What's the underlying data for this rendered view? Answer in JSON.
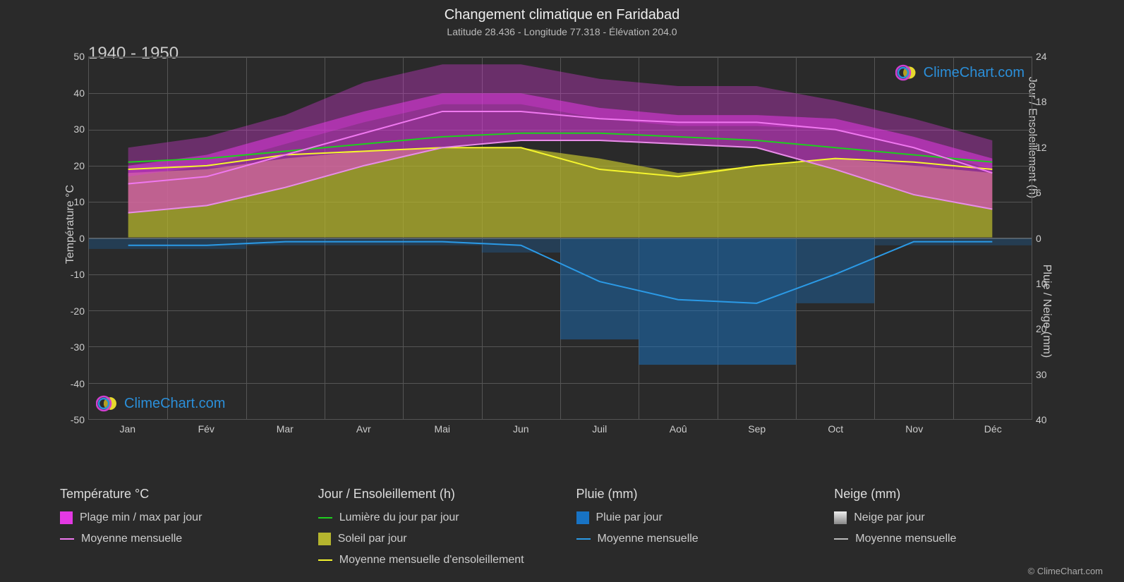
{
  "title": "Changement climatique en Faridabad",
  "subtitle": "Latitude 28.436 - Longitude 77.318 - Élévation 204.0",
  "period_label": "1940 - 1950",
  "watermark_text": "ClimeChart.com",
  "copyright": "© ClimeChart.com",
  "chart": {
    "background_color": "#2a2a2a",
    "grid_color": "#555555",
    "text_color": "#cccccc",
    "left_axis": {
      "label": "Température °C",
      "min": -50,
      "max": 50,
      "ticks": [
        -50,
        -40,
        -30,
        -20,
        -10,
        0,
        10,
        20,
        30,
        40,
        50
      ]
    },
    "right_axis_top": {
      "label": "Jour / Ensoleillement (h)",
      "min": 0,
      "max": 24,
      "ticks": [
        0,
        6,
        12,
        18,
        24
      ]
    },
    "right_axis_bottom": {
      "label": "Pluie / Neige (mm)",
      "min": 0,
      "max": 40,
      "ticks": [
        0,
        10,
        20,
        30,
        40
      ]
    },
    "months": [
      "Jan",
      "Fév",
      "Mar",
      "Avr",
      "Mai",
      "Jun",
      "Juil",
      "Aoû",
      "Sep",
      "Oct",
      "Nov",
      "Déc"
    ],
    "series": {
      "temp_max": {
        "color": "#e339e3",
        "values": [
          20,
          23,
          29,
          35,
          40,
          40,
          36,
          34,
          34,
          33,
          28,
          22
        ]
      },
      "temp_min": {
        "color": "#e88de8",
        "values": [
          7,
          9,
          14,
          20,
          25,
          27,
          27,
          26,
          25,
          19,
          12,
          8
        ]
      },
      "temp_mean_line": {
        "color": "#f078f0",
        "values": [
          15,
          17,
          23,
          29,
          35,
          35,
          33,
          32,
          32,
          30,
          25,
          18
        ]
      },
      "daylight": {
        "color": "#1ecf1e",
        "values": [
          21,
          22,
          24,
          26,
          28,
          29,
          29,
          28,
          27,
          25,
          23,
          21
        ]
      },
      "sunshine_fill": {
        "color": "#b5b52e",
        "top_values": [
          18,
          19,
          22,
          24,
          25,
          25,
          22,
          18,
          20,
          22,
          20,
          18
        ]
      },
      "sunshine_mean_line": {
        "color": "#f5f52e",
        "values": [
          19,
          20,
          23,
          24,
          25,
          25,
          19,
          17,
          20,
          22,
          21,
          19
        ]
      },
      "rain_bars": {
        "color": "#1873c4",
        "opacity": 0.5
      },
      "rain_mean_line": {
        "color": "#2b9ae6",
        "values": [
          -2,
          -2,
          -1,
          -1,
          -1,
          -2,
          -12,
          -17,
          -18,
          -10,
          -1,
          -1
        ]
      },
      "snow_line": {
        "color": "#cccccc",
        "values": [
          0,
          0,
          0,
          0,
          0,
          0,
          0,
          0,
          0,
          0,
          0,
          0
        ]
      }
    }
  },
  "legend": {
    "temp": {
      "header": "Température °C",
      "range": {
        "swatch": "#e339e3",
        "label": "Plage min / max par jour"
      },
      "mean": {
        "line": "#f078f0",
        "label": "Moyenne mensuelle"
      }
    },
    "daylight": {
      "header": "Jour / Ensoleillement (h)",
      "daylight": {
        "line": "#1ecf1e",
        "label": "Lumière du jour par jour"
      },
      "sun": {
        "swatch": "#b5b52e",
        "label": "Soleil par jour"
      },
      "sun_mean": {
        "line": "#f5f52e",
        "label": "Moyenne mensuelle d'ensoleillement"
      }
    },
    "rain": {
      "header": "Pluie (mm)",
      "daily": {
        "swatch": "#1873c4",
        "label": "Pluie par jour"
      },
      "mean": {
        "line": "#2b9ae6",
        "label": "Moyenne mensuelle"
      }
    },
    "snow": {
      "header": "Neige (mm)",
      "daily": {
        "swatch": "#cccccc",
        "label": "Neige par jour"
      },
      "mean": {
        "line": "#bbbbbb",
        "label": "Moyenne mensuelle"
      }
    }
  },
  "logo_colors": {
    "ring_outer": "#d03fd0",
    "ring_inner": "#2b8fd9",
    "sphere": "#e6d82e"
  }
}
